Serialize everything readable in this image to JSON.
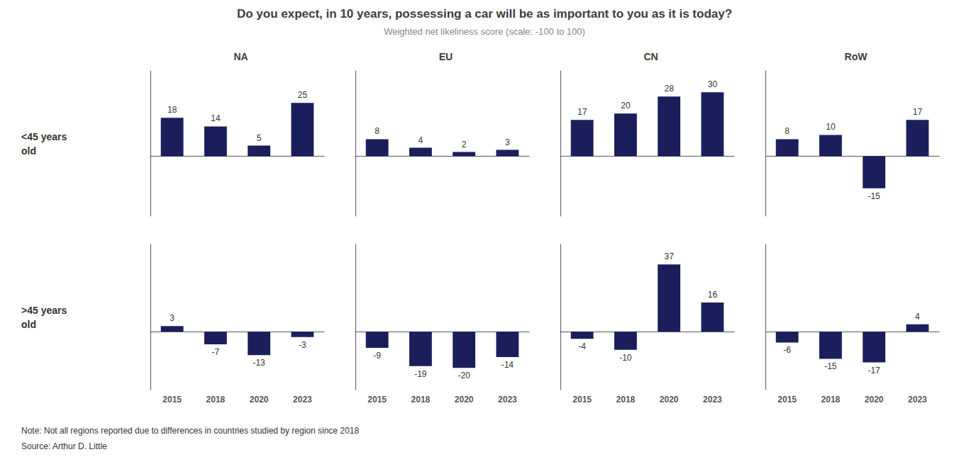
{
  "title": "Do you expect, in 10 years, possessing a car will be as important to you as it is today?",
  "subtitle": "Weighted net likeliness score (scale: -100 to 100)",
  "annotations": [
    "Note: Not all regions reported due to differences in countries studied by region since 2018",
    "Source: Arthur D. Little"
  ],
  "chart_data": [
    {
      "type": "bar",
      "title": "NA",
      "annotations": [
        "<45 years\nold"
      ],
      "categories": [
        "2015",
        "2018",
        "2020",
        "2023"
      ],
      "values": [
        18,
        14,
        5,
        25
      ],
      "color": "#1a1f5c",
      "ylim": [
        -28,
        40
      ],
      "data_labels": true,
      "tick_labels": false,
      "grid": false
    },
    {
      "type": "bar",
      "title": "EU",
      "categories": [
        "2015",
        "2018",
        "2020",
        "2023"
      ],
      "values": [
        8,
        4,
        2,
        3
      ],
      "color": "#1a1f5c",
      "ylim": [
        -28,
        40
      ],
      "data_labels": true,
      "tick_labels": false,
      "grid": false
    },
    {
      "type": "bar",
      "title": "CN",
      "categories": [
        "2015",
        "2018",
        "2020",
        "2023"
      ],
      "values": [
        17,
        20,
        28,
        30
      ],
      "color": "#1a1f5c",
      "ylim": [
        -28,
        40
      ],
      "data_labels": true,
      "tick_labels": false,
      "grid": false
    },
    {
      "type": "bar",
      "title": "RoW",
      "categories": [
        "2015",
        "2018",
        "2020",
        "2023"
      ],
      "values": [
        8,
        10,
        -15,
        17
      ],
      "color": "#1a1f5c",
      "ylim": [
        -28,
        40
      ],
      "data_labels": true,
      "tick_labels": false,
      "grid": false
    },
    {
      "type": "bar",
      "annotations": [
        ">45 years\nold"
      ],
      "categories": [
        "2015",
        "2018",
        "2020",
        "2023"
      ],
      "values": [
        3,
        -7,
        -13,
        -3
      ],
      "color": "#1a1f5c",
      "ylim": [
        -32,
        48
      ],
      "data_labels": true,
      "tick_labels": "x",
      "grid": false
    },
    {
      "type": "bar",
      "categories": [
        "2015",
        "2018",
        "2020",
        "2023"
      ],
      "values": [
        -9,
        -19,
        -20,
        -14
      ],
      "color": "#1a1f5c",
      "ylim": [
        -32,
        48
      ],
      "data_labels": true,
      "tick_labels": "x",
      "grid": false
    },
    {
      "type": "bar",
      "categories": [
        "2015",
        "2018",
        "2020",
        "2023"
      ],
      "values": [
        -4,
        -10,
        37,
        16
      ],
      "color": "#1a1f5c",
      "ylim": [
        -32,
        48
      ],
      "data_labels": true,
      "tick_labels": "x",
      "grid": false
    },
    {
      "type": "bar",
      "categories": [
        "2015",
        "2018",
        "2020",
        "2023"
      ],
      "values": [
        -6,
        -15,
        -17,
        4
      ],
      "color": "#1a1f5c",
      "ylim": [
        -32,
        48
      ],
      "data_labels": true,
      "tick_labels": "x",
      "grid": false
    }
  ]
}
